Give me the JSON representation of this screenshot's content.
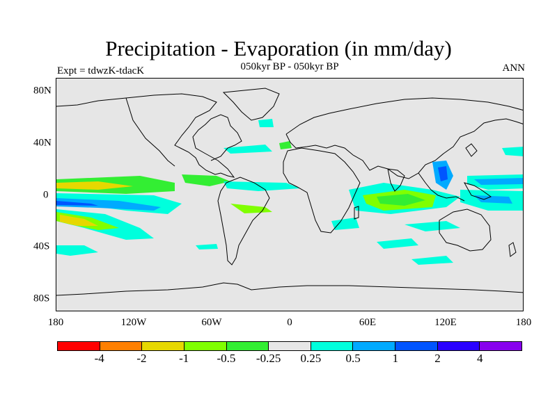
{
  "title": "Precipitation - Evaporation (in mm/day)",
  "subtitle": "050kyr BP - 050kyr BP",
  "left_label": "Expt = tdwzK-tdacK",
  "right_label": "ANN",
  "y_axis": {
    "ticks": [
      "80N",
      "40N",
      "0",
      "40S",
      "80S"
    ]
  },
  "x_axis": {
    "ticks": [
      "180",
      "120W",
      "60W",
      "0",
      "60E",
      "120E",
      "180"
    ]
  },
  "legend": {
    "colors": [
      "#ff0000",
      "#ff8000",
      "#e6d800",
      "#80ff00",
      "#33ee33",
      "#e6e6e6",
      "#00ffdd",
      "#00aaff",
      "#0055ff",
      "#2a00ff",
      "#8800ee"
    ],
    "labels": [
      "-4",
      "-2",
      "-1",
      "-0.5",
      "-0.25",
      "0.25",
      "0.5",
      "1",
      "2",
      "4"
    ]
  }
}
